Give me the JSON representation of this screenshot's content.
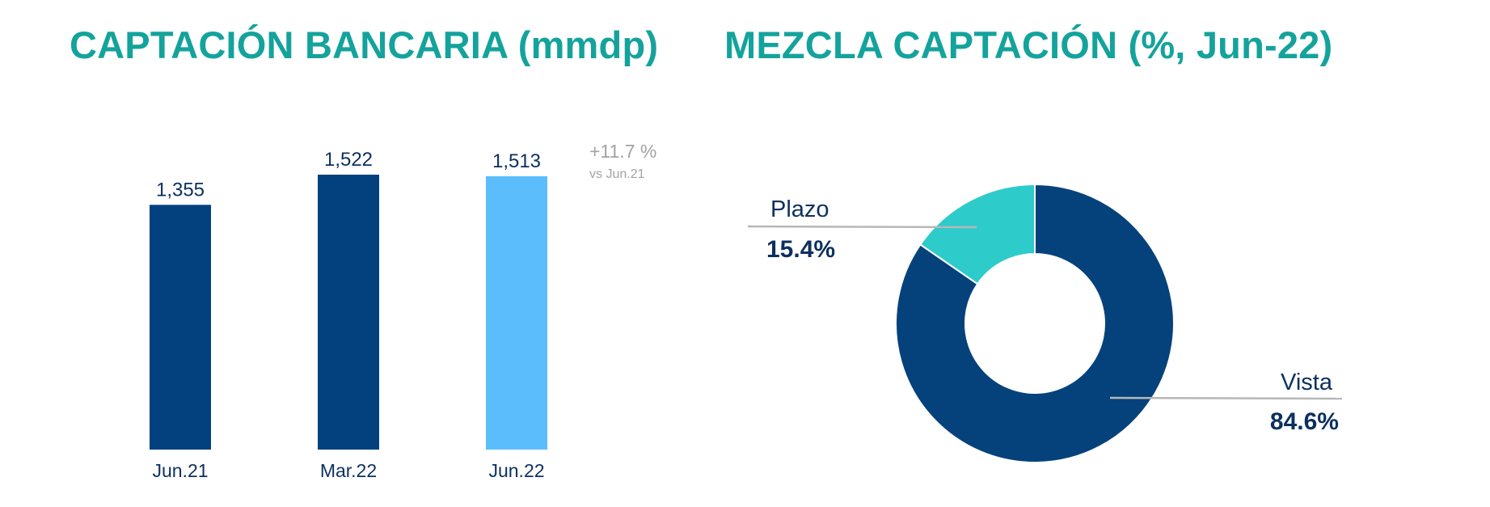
{
  "titles": {
    "left": "CAPTACIÓN BANCARIA (mmdp)",
    "right": "MEZCLA CAPTACIÓN (%, Jun-22)"
  },
  "growth_note": {
    "value": "+11.7 %",
    "reference": "vs Jun.21"
  },
  "colors": {
    "title": "#14a39c",
    "bar_dark": "#03417e",
    "bar_light": "#5bbdfb",
    "donut_vista": "#05427c",
    "donut_plazo": "#2ecbcb",
    "label_text": "#0c305f",
    "note_text": "#a3a3a3"
  },
  "chart_data": [
    {
      "type": "bar",
      "title": "CAPTACIÓN BANCARIA (mmdp)",
      "categories": [
        "Jun.21",
        "Mar.22",
        "Jun.22"
      ],
      "values": [
        1355,
        1522,
        1513
      ],
      "value_labels": [
        "1,355",
        "1,522",
        "1,513"
      ],
      "highlight": "Jun.22",
      "ylim": [
        0,
        1522
      ],
      "grid": false
    },
    {
      "type": "pie",
      "subtype": "donut",
      "title": "MEZCLA CAPTACIÓN (%, Jun-22)",
      "slices": [
        {
          "label": "Vista",
          "value": 84.6,
          "display": "84.6%"
        },
        {
          "label": "Plazo",
          "value": 15.4,
          "display": "15.4%"
        }
      ]
    }
  ]
}
